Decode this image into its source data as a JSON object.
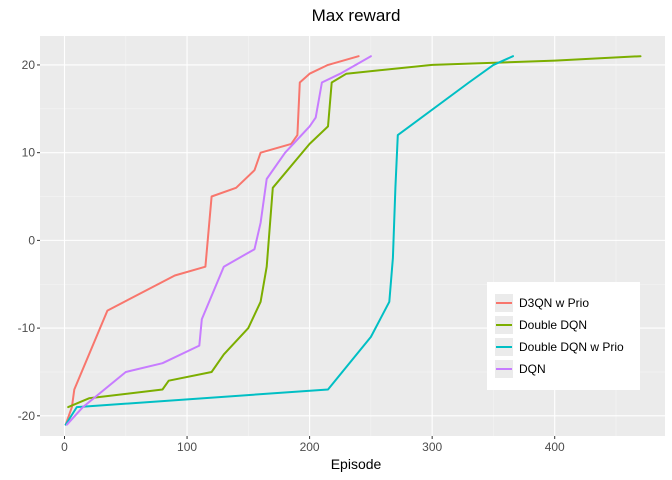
{
  "chart_data": {
    "type": "line",
    "title": "Max reward",
    "xlabel": "Episode",
    "ylabel": "",
    "xlim": [
      -20,
      490
    ],
    "ylim": [
      -22.3,
      23.3
    ],
    "x_ticks": [
      0,
      100,
      200,
      300,
      400
    ],
    "y_ticks": [
      -20,
      -10,
      0,
      10,
      20
    ],
    "grid": true,
    "legend_position": "right",
    "series": [
      {
        "name": "D3QN w Prio",
        "color": "#f8766d",
        "x": [
          1,
          6,
          8,
          35,
          90,
          115,
          120,
          140,
          155,
          160,
          185,
          190,
          192,
          200,
          215,
          240
        ],
        "y": [
          -21,
          -19,
          -17,
          -8,
          -4,
          -3,
          5,
          6,
          8,
          10,
          11,
          12,
          18,
          19,
          20,
          21
        ]
      },
      {
        "name": "Double DQN",
        "color": "#7cae00",
        "x": [
          3,
          20,
          80,
          85,
          120,
          130,
          150,
          160,
          165,
          170,
          200,
          215,
          218,
          230,
          300,
          400,
          470
        ],
        "y": [
          -19,
          -18,
          -17,
          -16,
          -15,
          -13,
          -10,
          -7,
          -3,
          6,
          11,
          13,
          18,
          19,
          20,
          20.5,
          21
        ]
      },
      {
        "name": "Double DQN w Prio",
        "color": "#00bfc4",
        "x": [
          1,
          10,
          215,
          250,
          265,
          268,
          270,
          272,
          330,
          350,
          366
        ],
        "y": [
          -21,
          -19,
          -17,
          -11,
          -7,
          -2,
          6,
          12,
          18,
          20,
          21
        ]
      },
      {
        "name": "DQN",
        "color": "#c77cff",
        "x": [
          2,
          15,
          50,
          80,
          110,
          112,
          130,
          155,
          160,
          165,
          180,
          200,
          205,
          210,
          225,
          250
        ],
        "y": [
          -21,
          -19,
          -15,
          -14,
          -12,
          -9,
          -3,
          -1,
          2,
          7,
          10,
          13,
          14,
          18,
          19,
          21
        ]
      }
    ]
  }
}
